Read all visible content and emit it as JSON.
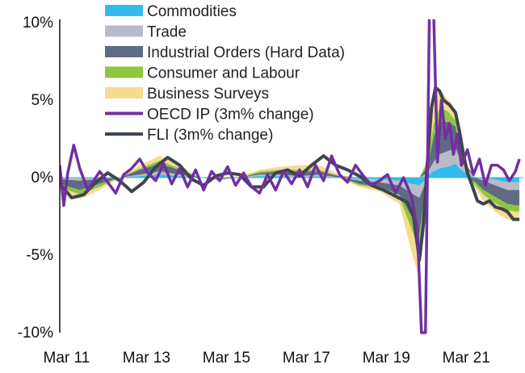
{
  "chart_data": {
    "type": "area",
    "x_unit": "year",
    "xlim": [
      2011.0,
      2022.6
    ],
    "ylim": [
      -10,
      10
    ],
    "x_ticks": [
      {
        "value": 2011.17,
        "label": "Mar 11"
      },
      {
        "value": 2013.17,
        "label": "Mar 13"
      },
      {
        "value": 2015.17,
        "label": "Mar 15"
      },
      {
        "value": 2017.17,
        "label": "Mar 17"
      },
      {
        "value": 2019.17,
        "label": "Mar 19"
      },
      {
        "value": 2021.17,
        "label": "Mar 21"
      }
    ],
    "y_ticks": [
      {
        "value": 10,
        "label": "10%"
      },
      {
        "value": 5,
        "label": "5%"
      },
      {
        "value": 0,
        "label": "0%"
      },
      {
        "value": -5,
        "label": "-5%"
      },
      {
        "value": -10,
        "label": "-10%"
      }
    ],
    "grid": false,
    "legend_position": "top",
    "x": [
      2011.0,
      2011.5,
      2012.0,
      2012.5,
      2013.0,
      2013.5,
      2014.0,
      2014.5,
      2015.0,
      2015.5,
      2016.0,
      2016.5,
      2017.0,
      2017.5,
      2018.0,
      2018.5,
      2019.0,
      2019.5,
      2019.8,
      2020.0,
      2020.2,
      2020.35,
      2020.5,
      2020.7,
      2020.9,
      2021.0,
      2021.2,
      2021.4,
      2021.6,
      2021.8,
      2022.0,
      2022.2,
      2022.4,
      2022.5
    ],
    "stacked_series": [
      {
        "name": "Commodities",
        "color": "#33bbee",
        "values": [
          0.0,
          0.0,
          0.0,
          0.0,
          0.1,
          0.2,
          0.1,
          0.0,
          0.0,
          0.0,
          0.1,
          0.1,
          0.0,
          0.1,
          0.0,
          -0.1,
          -0.1,
          -0.2,
          -0.4,
          -0.5,
          0.1,
          0.4,
          0.6,
          0.7,
          0.9,
          0.6,
          0.2,
          0.0,
          0.0,
          -0.1,
          -0.2,
          -0.3,
          -0.3,
          -0.3
        ]
      },
      {
        "name": "Trade",
        "color": "#b8bcc6",
        "values": [
          -0.1,
          -0.2,
          -0.1,
          0.0,
          0.1,
          0.2,
          0.1,
          0.0,
          0.0,
          0.0,
          0.1,
          0.1,
          0.1,
          0.1,
          0.0,
          -0.1,
          -0.2,
          -0.3,
          -0.6,
          -0.8,
          0.2,
          0.6,
          0.9,
          1.0,
          1.0,
          0.7,
          0.3,
          0.0,
          -0.2,
          -0.3,
          -0.4,
          -0.5,
          -0.5,
          -0.5
        ]
      },
      {
        "name": "Industrial Orders (Hard Data)",
        "color": "#5f6b82",
        "values": [
          -0.3,
          -0.6,
          -0.3,
          0.0,
          0.3,
          0.5,
          0.3,
          0.0,
          -0.1,
          0.0,
          0.1,
          0.2,
          0.3,
          0.2,
          0.1,
          -0.2,
          -0.3,
          -0.6,
          -1.5,
          -2.3,
          0.4,
          1.6,
          2.1,
          1.9,
          1.4,
          0.8,
          0.2,
          -0.3,
          -0.6,
          -0.7,
          -0.8,
          -0.9,
          -1.0,
          -1.0
        ]
      },
      {
        "name": "Consumer and Labour",
        "color": "#8dc63f",
        "values": [
          -0.2,
          -0.3,
          -0.2,
          0.0,
          0.1,
          0.2,
          0.1,
          0.0,
          0.0,
          0.0,
          0.1,
          0.1,
          0.1,
          0.1,
          0.0,
          -0.1,
          -0.1,
          -0.2,
          -0.8,
          -1.2,
          0.3,
          0.8,
          0.9,
          0.7,
          0.4,
          0.2,
          0.0,
          -0.2,
          -0.3,
          -0.4,
          -0.4,
          -0.4,
          -0.4,
          -0.4
        ]
      },
      {
        "name": "Business Surveys",
        "color": "#f5dc90",
        "values": [
          -0.2,
          -0.3,
          -0.2,
          0.0,
          0.2,
          0.3,
          0.2,
          0.0,
          -0.1,
          0.1,
          0.1,
          0.2,
          0.3,
          0.3,
          0.1,
          -0.1,
          -0.2,
          -0.4,
          -1.5,
          -1.7,
          0.2,
          1.8,
          1.2,
          0.8,
          0.7,
          0.5,
          0.1,
          -0.2,
          -0.4,
          -0.5,
          -0.6,
          -0.6,
          -0.6,
          -0.6
        ]
      }
    ],
    "line_series": [
      {
        "name": "OECD IP (3m% change)",
        "color": "#7030a0",
        "x": [
          2011.0,
          2011.1,
          2011.2,
          2011.35,
          2011.5,
          2011.7,
          2011.85,
          2012.0,
          2012.2,
          2012.4,
          2012.6,
          2012.8,
          2013.0,
          2013.2,
          2013.4,
          2013.6,
          2013.8,
          2014.0,
          2014.2,
          2014.4,
          2014.6,
          2014.8,
          2015.0,
          2015.2,
          2015.4,
          2015.6,
          2015.8,
          2016.0,
          2016.2,
          2016.4,
          2016.6,
          2016.8,
          2017.0,
          2017.2,
          2017.4,
          2017.6,
          2017.8,
          2018.0,
          2018.2,
          2018.4,
          2018.6,
          2018.8,
          2019.0,
          2019.2,
          2019.4,
          2019.6,
          2019.8,
          2019.95,
          2020.05,
          2020.15,
          2020.25,
          2020.35,
          2020.45,
          2020.55,
          2020.65,
          2020.75,
          2020.85,
          2020.95,
          2021.05,
          2021.2,
          2021.35,
          2021.5,
          2021.65,
          2021.8,
          2021.95,
          2022.1,
          2022.25,
          2022.4,
          2022.5
        ],
        "values": [
          0.8,
          -1.8,
          0.3,
          2.1,
          0.6,
          -0.8,
          -0.2,
          0.4,
          -0.3,
          -1.0,
          0.2,
          0.6,
          1.2,
          0.3,
          -0.2,
          0.9,
          -0.4,
          0.6,
          -0.6,
          0.5,
          -0.8,
          0.4,
          -0.2,
          0.7,
          -0.5,
          0.3,
          -0.6,
          -1.0,
          0.2,
          -0.8,
          0.4,
          -0.4,
          0.5,
          -0.6,
          0.8,
          -0.2,
          1.4,
          0.2,
          -0.3,
          0.8,
          0.1,
          -0.5,
          -0.2,
          0.2,
          -1.0,
          0.0,
          -1.2,
          -3.5,
          -10.0,
          -10.0,
          11.0,
          11.0,
          1.0,
          5.0,
          2.5,
          3.5,
          1.5,
          2.8,
          0.8,
          1.8,
          0.2,
          1.2,
          -0.5,
          0.8,
          0.8,
          0.5,
          -0.2,
          0.4,
          1.2
        ]
      },
      {
        "name": "FLI (3m% change)",
        "color": "#3d4451",
        "x": [
          2011.0,
          2011.3,
          2011.6,
          2011.9,
          2012.2,
          2012.5,
          2012.8,
          2013.1,
          2013.4,
          2013.7,
          2014.0,
          2014.3,
          2014.6,
          2014.9,
          2015.2,
          2015.5,
          2015.8,
          2016.1,
          2016.4,
          2016.7,
          2017.0,
          2017.3,
          2017.6,
          2017.9,
          2018.2,
          2018.5,
          2018.8,
          2019.1,
          2019.4,
          2019.7,
          2019.85,
          2020.0,
          2020.1,
          2020.2,
          2020.3,
          2020.4,
          2020.5,
          2020.6,
          2020.75,
          2020.9,
          2021.0,
          2021.1,
          2021.2,
          2021.3,
          2021.45,
          2021.6,
          2021.75,
          2021.9,
          2022.05,
          2022.2,
          2022.35,
          2022.5
        ],
        "values": [
          -0.4,
          -1.3,
          -1.1,
          -0.3,
          0.3,
          -0.2,
          -0.9,
          -0.3,
          0.7,
          1.3,
          0.8,
          -0.1,
          -0.5,
          0.1,
          0.3,
          0.2,
          -0.6,
          -0.6,
          0.3,
          0.5,
          0.1,
          0.8,
          1.4,
          0.8,
          0.5,
          0.1,
          -0.5,
          -0.8,
          -1.2,
          -1.6,
          -2.5,
          -5.3,
          -3.0,
          1.0,
          4.5,
          5.8,
          5.6,
          5.0,
          4.7,
          4.2,
          3.0,
          1.5,
          0.3,
          -0.4,
          -1.5,
          -1.7,
          -1.5,
          -1.9,
          -2.0,
          -2.2,
          -2.7,
          -2.7
        ]
      }
    ],
    "legend": [
      {
        "label": "Commodities",
        "kind": "box",
        "color": "#33bbee"
      },
      {
        "label": "Trade",
        "kind": "box",
        "color": "#b8bcc6"
      },
      {
        "label": "Industrial Orders (Hard Data)",
        "kind": "box",
        "color": "#5f6b82"
      },
      {
        "label": "Consumer and Labour",
        "kind": "box",
        "color": "#8dc63f"
      },
      {
        "label": "Business Surveys",
        "kind": "box",
        "color": "#f5dc90"
      },
      {
        "label": "OECD IP (3m% change)",
        "kind": "line",
        "color": "#7030a0"
      },
      {
        "label": "FLI (3m% change)",
        "kind": "line",
        "color": "#3d4451"
      }
    ]
  }
}
